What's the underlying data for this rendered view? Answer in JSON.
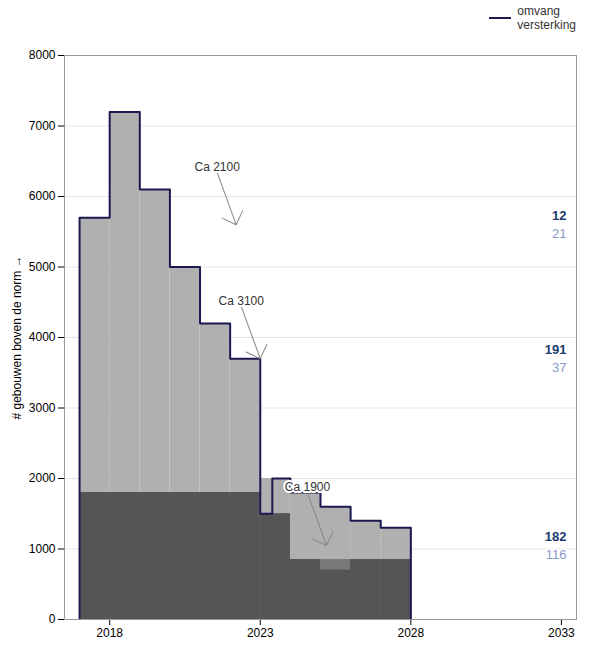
{
  "chart_data": {
    "type": "step_area",
    "ylabel": "# gebouwen boven de norm",
    "xlim": [
      2016.5,
      2033.5
    ],
    "ylim": [
      0,
      8000
    ],
    "xticks": [
      2018,
      2023,
      2028,
      2033
    ],
    "yticks": [
      0,
      1000,
      2000,
      3000,
      4000,
      5000,
      6000,
      7000,
      8000
    ],
    "grid": true,
    "legend": "upper right",
    "series": [
      {
        "type": "area",
        "color": "#b0b0b0",
        "bins": [
          2017,
          2018,
          2019,
          2020,
          2021,
          2022,
          2023,
          2024,
          2025,
          2026,
          2027,
          2028
        ],
        "values": [
          5700,
          7200,
          6100,
          5000,
          4200,
          3700,
          2000,
          1800,
          1600,
          1400,
          1300
        ]
      },
      {
        "type": "area",
        "color": "#787878",
        "bins": [
          2017,
          2023,
          2024,
          2028
        ],
        "values": [
          1800,
          1500,
          850
        ]
      },
      {
        "type": "area",
        "color": "#555555",
        "bins": [
          2017,
          2023,
          2024,
          2025,
          2026,
          2027,
          2028
        ],
        "values": [
          1800,
          1500,
          850,
          700,
          850,
          850
        ]
      },
      {
        "name": "omvang\nversterking",
        "type": "line",
        "color": "#1a1a50",
        "x": [
          2017,
          2017,
          2018,
          2018,
          2019,
          2019,
          2020,
          2020,
          2021,
          2021,
          2022,
          2022,
          2023,
          2023,
          2023.4,
          2023.4,
          2024,
          2024,
          2025,
          2025,
          2026,
          2026,
          2027,
          2027,
          2028,
          2028
        ],
        "values": [
          0,
          5700,
          5700,
          7200,
          7200,
          6100,
          6100,
          5000,
          5000,
          4200,
          4200,
          3700,
          3700,
          1500,
          1500,
          2000,
          2000,
          1800,
          1800,
          1600,
          1600,
          1400,
          1400,
          1300,
          1300,
          0
        ]
      }
    ],
    "annotations": [
      {
        "text": "Ca 2100",
        "x": 2022.2,
        "y": 5600,
        "color": "#333333",
        "numbers": [
          {
            "value": 12,
            "color": "#1a3a6e"
          },
          {
            "value": 21,
            "color": "#8899cc"
          }
        ]
      },
      {
        "text": "Ca 3100",
        "x": 2023.0,
        "y": 3700,
        "color": "#333333",
        "numbers": [
          {
            "value": 191,
            "color": "#1a3a6e"
          },
          {
            "value": 37,
            "color": "#8899cc"
          }
        ]
      },
      {
        "text": "Ca 1900",
        "x": 2025.2,
        "y": 1050,
        "color": "#333333",
        "numbers": [
          {
            "value": 182,
            "color": "#1a3a6e"
          },
          {
            "value": 116,
            "color": "#8899cc"
          }
        ]
      }
    ]
  }
}
